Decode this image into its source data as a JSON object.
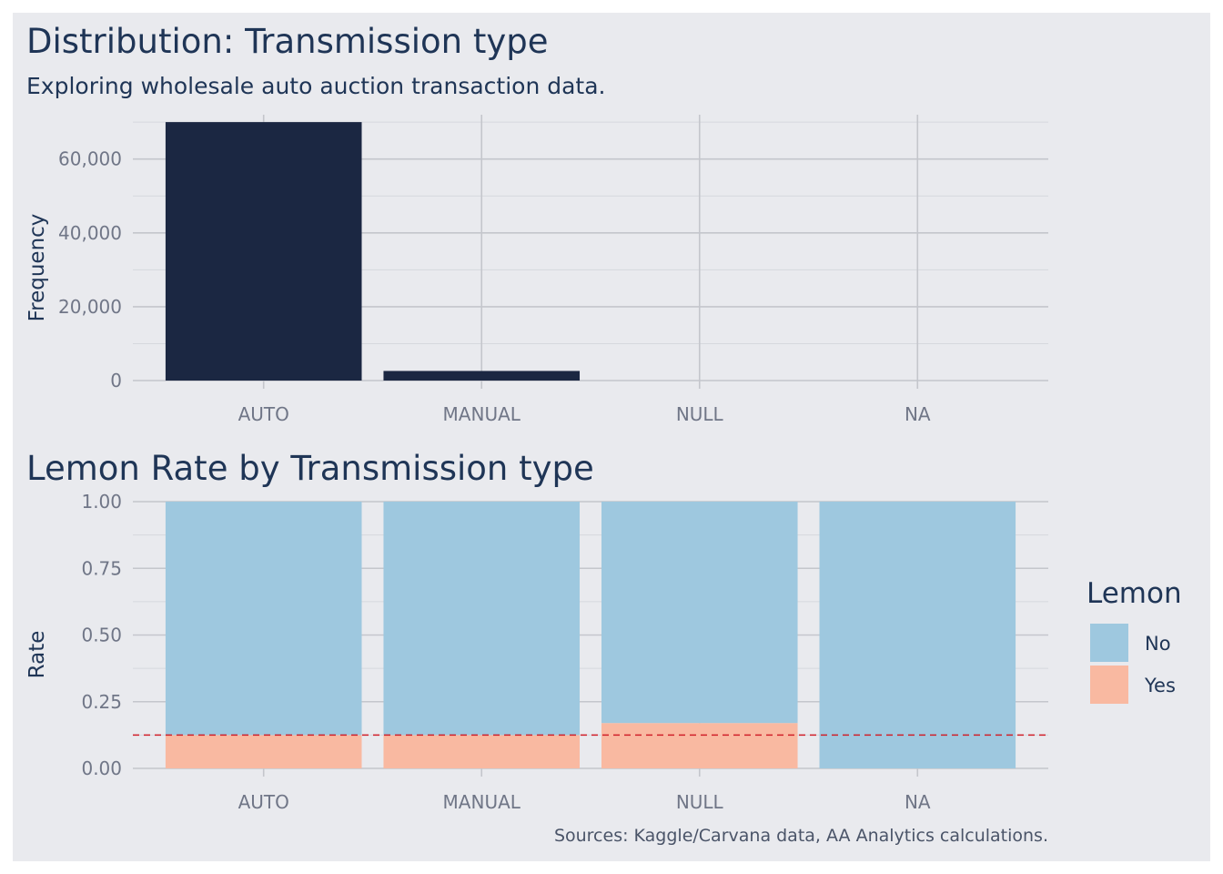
{
  "chart_data": [
    {
      "type": "bar",
      "title": "Distribution: Transmission type",
      "subtitle": "Exploring wholesale auto auction transaction data.",
      "xlabel": "",
      "ylabel": "Frequency",
      "categories": [
        "AUTO",
        "MANUAL",
        "NULL",
        "NA"
      ],
      "values": [
        70000,
        2600,
        0,
        0
      ],
      "ylim": [
        0,
        72000
      ],
      "yticks": [
        0,
        20000,
        40000,
        60000
      ],
      "ytick_labels": [
        "0",
        "20,000",
        "40,000",
        "60,000"
      ],
      "bar_color": "#1b2742",
      "grid": true
    },
    {
      "type": "bar",
      "stacked": true,
      "title": "Lemon Rate by Transmission type",
      "xlabel": "",
      "ylabel": "Rate",
      "categories": [
        "AUTO",
        "MANUAL",
        "NULL",
        "NA"
      ],
      "series": [
        {
          "name": "No",
          "values": [
            0.875,
            0.875,
            0.83,
            1.0
          ],
          "color": "#9ec8df"
        },
        {
          "name": "Yes",
          "values": [
            0.125,
            0.125,
            0.17,
            0.0
          ],
          "color": "#f9b9a1"
        }
      ],
      "ylim": [
        0,
        1
      ],
      "yticks": [
        0,
        0.25,
        0.5,
        0.75,
        1.0
      ],
      "ytick_labels": [
        "0.00",
        "0.25",
        "0.50",
        "0.75",
        "1.00"
      ],
      "reference_line": {
        "value": 0.125,
        "color": "#d0202a",
        "style": "dashed"
      },
      "legend": {
        "title": "Lemon",
        "position": "right"
      },
      "grid": true
    }
  ],
  "caption": "Sources: Kaggle/Carvana data, AA Analytics calculations."
}
